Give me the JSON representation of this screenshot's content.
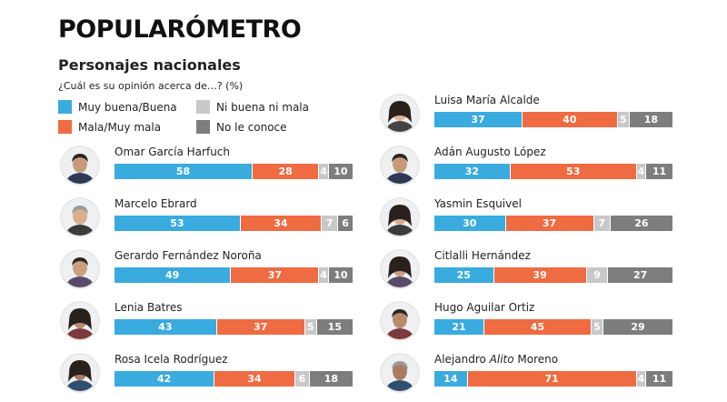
{
  "header": {
    "title": "POPULARÓMETRO",
    "subtitle": "Personajes nacionales",
    "question": "¿Cuál es su opinión acerca de…? (%)"
  },
  "colors": {
    "good": "#3aabde",
    "bad": "#ef6b42",
    "neutral": "#c8c8c8",
    "unknown": "#7d7d7d"
  },
  "chart_data": {
    "type": "bar",
    "stacked": true,
    "orientation": "horizontal",
    "categories": [
      "Omar García Harfuch",
      "Marcelo Ebrard",
      "Gerardo Fernández Noroña",
      "Lenia Batres",
      "Rosa Icela Rodríguez",
      "Luisa María Alcalde",
      "Adán Augusto López",
      "Yasmin Esquivel",
      "Citlalli Hernández",
      "Hugo Aguilar Ortiz",
      "Alejandro Alito Moreno"
    ],
    "series": [
      {
        "name": "Muy buena/Buena",
        "color": "#3aabde",
        "values": [
          58,
          53,
          49,
          43,
          42,
          37,
          32,
          30,
          25,
          21,
          14
        ]
      },
      {
        "name": "Mala/Muy mala",
        "color": "#ef6b42",
        "values": [
          28,
          34,
          37,
          37,
          34,
          40,
          53,
          37,
          39,
          45,
          71
        ]
      },
      {
        "name": "Ni buena ni mala",
        "color": "#c8c8c8",
        "values": [
          4,
          7,
          4,
          5,
          6,
          5,
          4,
          7,
          9,
          5,
          4
        ]
      },
      {
        "name": "No le conoce",
        "color": "#7d7d7d",
        "values": [
          10,
          6,
          10,
          15,
          18,
          18,
          11,
          26,
          27,
          29,
          11
        ]
      }
    ],
    "legend_placement": "top-left",
    "grid": false
  },
  "people": [
    {
      "name": "Omar García Harfuch",
      "icon": "avatar-man-icon"
    },
    {
      "name": "Marcelo Ebrard",
      "icon": "avatar-man-icon"
    },
    {
      "name": "Gerardo Fernández Noroña",
      "icon": "avatar-man-icon"
    },
    {
      "name": "Lenia Batres",
      "icon": "avatar-woman-icon"
    },
    {
      "name": "Rosa Icela Rodríguez",
      "icon": "avatar-woman-icon"
    },
    {
      "name": "Luisa María Alcalde",
      "icon": "avatar-woman-icon"
    },
    {
      "name": "Adán Augusto López",
      "icon": "avatar-man-icon"
    },
    {
      "name": "Yasmin Esquivel",
      "icon": "avatar-woman-icon"
    },
    {
      "name": "Citlalli Hernández",
      "icon": "avatar-woman-icon"
    },
    {
      "name": "Hugo Aguilar Ortiz",
      "icon": "avatar-man-icon"
    },
    {
      "name_prefix": "Alejandro ",
      "name_italic": "Alito",
      "name_suffix": " Moreno",
      "icon": "avatar-man-icon"
    }
  ]
}
